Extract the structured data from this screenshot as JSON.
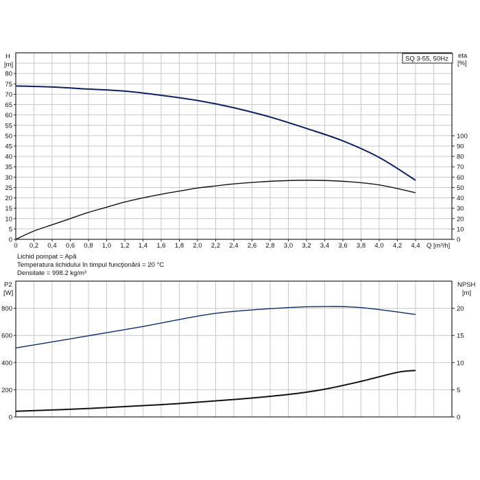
{
  "chart_data": [
    {
      "type": "line",
      "title": "SQ 3-55, 50Hz",
      "xlabel": "Q [m³/h]",
      "ylabel_left": [
        "H",
        "[m]"
      ],
      "ylabel_right": [
        "eta",
        "[%]"
      ],
      "xlim": [
        0,
        4.8
      ],
      "ylim_left": [
        0,
        90
      ],
      "ylim_right": [
        0,
        180
      ],
      "x_ticks": [
        "0",
        "0,2",
        "0,4",
        "0,6",
        "0,8",
        "1,0",
        "1,2",
        "1,4",
        "1,6",
        "1,8",
        "2,0",
        "2,2",
        "2,4",
        "2,6",
        "2,8",
        "3,0",
        "3,2",
        "3,4",
        "3,6",
        "3,8",
        "4,0",
        "4,2",
        "4,4"
      ],
      "y_ticks_left": [
        0,
        5,
        10,
        15,
        20,
        25,
        30,
        35,
        40,
        45,
        50,
        55,
        60,
        65,
        70,
        75,
        80
      ],
      "y_ticks_right": [
        0,
        10,
        20,
        30,
        40,
        50,
        60,
        70,
        80,
        90,
        100
      ],
      "grid": true,
      "series": [
        {
          "axis": "left",
          "color": "#0d1f5c",
          "x": [
            0,
            0.4,
            0.8,
            1.2,
            1.6,
            2.0,
            2.4,
            2.8,
            3.2,
            3.6,
            4.0,
            4.4
          ],
          "y": [
            74,
            73.5,
            72.5,
            71.5,
            69.5,
            67,
            63.5,
            59,
            53.5,
            47.5,
            39.5,
            28.5
          ]
        },
        {
          "axis": "right",
          "color": "#111111",
          "x": [
            0,
            0.2,
            0.4,
            0.6,
            0.8,
            1.0,
            1.2,
            1.4,
            1.6,
            1.8,
            2.0,
            2.2,
            2.4,
            2.8,
            3.2,
            3.6,
            4.0,
            4.4
          ],
          "y": [
            0,
            8,
            14,
            20,
            26,
            31,
            36,
            40,
            43.5,
            46.5,
            49.5,
            51.5,
            53.5,
            56,
            57,
            56,
            52.5,
            45
          ]
        }
      ]
    },
    {
      "type": "line",
      "xlim": [
        0,
        4.8
      ],
      "ylabel_left": [
        "P2",
        "[W]"
      ],
      "ylabel_right": [
        "NPSH",
        "[m]"
      ],
      "ylim_left": [
        0,
        1000
      ],
      "ylim_right": [
        0,
        25
      ],
      "y_ticks_left": [
        0,
        200,
        400,
        600,
        800
      ],
      "y_ticks_right": [
        0,
        5,
        10,
        15,
        20
      ],
      "grid": true,
      "series": [
        {
          "axis": "left",
          "color": "#0d2a6b",
          "x": [
            0,
            0.6,
            1.4,
            2.2,
            3.0,
            3.4,
            3.8,
            4.4
          ],
          "y": [
            508,
            575,
            666,
            763,
            805,
            813,
            805,
            755
          ]
        },
        {
          "axis": "right",
          "color": "#111111",
          "x": [
            0,
            0.8,
            1.6,
            2.4,
            3.0,
            3.4,
            3.8,
            4.2,
            4.4
          ],
          "y": [
            1.04,
            1.55,
            2.25,
            3.2,
            4.13,
            5.1,
            6.55,
            8.2,
            8.55
          ]
        }
      ]
    }
  ],
  "notes": [
    "Lichid pompat = Apă",
    "Temperatura lichidului în timpul funcţionării = 20 °C",
    "Densitate = 998.2 kg/m³"
  ]
}
